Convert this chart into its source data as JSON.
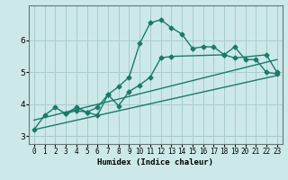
{
  "title": "",
  "xlabel": "Humidex (Indice chaleur)",
  "background_color": "#cce8e8",
  "grid_color": "#aacccc",
  "line_color": "#1a7a6a",
  "xlim": [
    -0.5,
    23.5
  ],
  "ylim": [
    2.75,
    7.1
  ],
  "yticks": [
    3,
    4,
    5,
    6
  ],
  "xticks": [
    0,
    1,
    2,
    3,
    4,
    5,
    6,
    7,
    8,
    9,
    10,
    11,
    12,
    13,
    14,
    15,
    16,
    17,
    18,
    19,
    20,
    21,
    22,
    23
  ],
  "line1_x": [
    0,
    1,
    2,
    3,
    4,
    5,
    6,
    7,
    8,
    9,
    10,
    11,
    12,
    13,
    14,
    15,
    16,
    17,
    18,
    19,
    20,
    21,
    22,
    23
  ],
  "line1_y": [
    3.2,
    3.65,
    3.9,
    3.7,
    3.8,
    3.75,
    3.9,
    4.3,
    4.55,
    4.85,
    5.9,
    6.55,
    6.65,
    6.4,
    6.2,
    5.75,
    5.8,
    5.8,
    5.55,
    5.8,
    5.4,
    5.4,
    5.0,
    4.95
  ],
  "line2_x": [
    3,
    4,
    5,
    6,
    7,
    8,
    9,
    10,
    11,
    12,
    13,
    18,
    19,
    22,
    23
  ],
  "line2_y": [
    3.7,
    3.9,
    3.75,
    3.65,
    4.3,
    3.95,
    4.4,
    4.6,
    4.85,
    5.45,
    5.5,
    5.55,
    5.45,
    5.55,
    5.0
  ],
  "line3_x": [
    0,
    23
  ],
  "line3_y": [
    3.2,
    4.9
  ],
  "line4_x": [
    0,
    23
  ],
  "line4_y": [
    3.5,
    5.4
  ],
  "xlabel_fontsize": 6.5,
  "tick_fontsize": 5.5,
  "ytick_fontsize": 6.5
}
